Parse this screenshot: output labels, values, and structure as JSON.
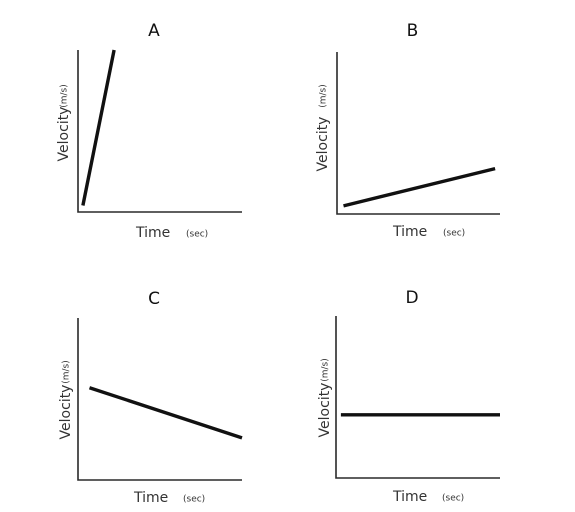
{
  "chart_data": [
    {
      "type": "line",
      "title": "A",
      "xlabel": "Time",
      "xunit": "(sec)",
      "ylabel": "Velocity",
      "yunit": "(m/s)",
      "xlim": [
        0,
        10
      ],
      "ylim": [
        0,
        10
      ],
      "grid": false,
      "series": [
        {
          "x": [
            0.3,
            2.2
          ],
          "y": [
            0.4,
            10
          ]
        }
      ]
    },
    {
      "type": "line",
      "title": "B",
      "xlabel": "Time",
      "xunit": "(sec)",
      "ylabel": "Velocity",
      "yunit": "(m/s)",
      "xlim": [
        0,
        10
      ],
      "ylim": [
        0,
        10
      ],
      "grid": false,
      "series": [
        {
          "x": [
            0.4,
            9.7
          ],
          "y": [
            0.5,
            2.8
          ]
        }
      ]
    },
    {
      "type": "line",
      "title": "C",
      "xlabel": "Time",
      "xunit": "(sec)",
      "ylabel": "Velocity",
      "yunit": "(m/s)",
      "xlim": [
        0,
        10
      ],
      "ylim": [
        0,
        10
      ],
      "grid": false,
      "series": [
        {
          "x": [
            0.7,
            10
          ],
          "y": [
            5.7,
            2.6
          ]
        }
      ]
    },
    {
      "type": "line",
      "title": "D",
      "xlabel": "Time",
      "xunit": "(sec)",
      "ylabel": "Velocity",
      "yunit": "(m/s)",
      "xlim": [
        0,
        10
      ],
      "ylim": [
        0,
        10
      ],
      "grid": false,
      "series": [
        {
          "x": [
            0.3,
            10
          ],
          "y": [
            3.9,
            3.9
          ]
        }
      ]
    }
  ]
}
